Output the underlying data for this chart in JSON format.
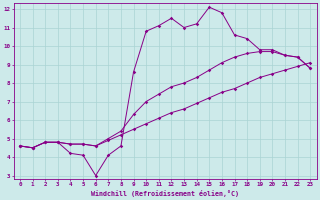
{
  "xlabel": "Windchill (Refroidissement éolien,°C)",
  "bg_color": "#cdeaea",
  "grid_color": "#aad4d4",
  "line_color": "#880088",
  "spine_color": "#880088",
  "xlim": [
    -0.5,
    23.5
  ],
  "ylim": [
    2.8,
    12.3
  ],
  "xticks": [
    0,
    1,
    2,
    3,
    4,
    5,
    6,
    7,
    8,
    9,
    10,
    11,
    12,
    13,
    14,
    15,
    16,
    17,
    18,
    19,
    20,
    21,
    22,
    23
  ],
  "yticks": [
    3,
    4,
    5,
    6,
    7,
    8,
    9,
    10,
    11,
    12
  ],
  "line1_x": [
    0,
    1,
    2,
    3,
    4,
    5,
    6,
    7,
    8,
    9,
    10,
    11,
    12,
    13,
    14,
    15,
    16,
    17,
    18,
    19,
    20,
    21,
    22,
    23
  ],
  "line1_y": [
    4.6,
    4.5,
    4.8,
    4.8,
    4.7,
    4.7,
    4.6,
    4.9,
    5.2,
    5.5,
    5.8,
    6.1,
    6.4,
    6.6,
    6.9,
    7.2,
    7.5,
    7.7,
    8.0,
    8.3,
    8.5,
    8.7,
    8.9,
    9.1
  ],
  "line2_x": [
    0,
    1,
    2,
    3,
    4,
    5,
    6,
    7,
    8,
    9,
    10,
    11,
    12,
    13,
    14,
    15,
    16,
    17,
    18,
    19,
    20,
    21,
    22,
    23
  ],
  "line2_y": [
    4.6,
    4.5,
    4.8,
    4.8,
    4.2,
    4.1,
    3.0,
    4.1,
    4.6,
    8.6,
    10.8,
    11.1,
    11.5,
    11.0,
    11.2,
    12.1,
    11.8,
    10.6,
    10.4,
    9.8,
    9.8,
    9.5,
    9.4,
    8.8
  ],
  "line3_x": [
    0,
    1,
    2,
    3,
    4,
    5,
    6,
    7,
    8,
    9,
    10,
    11,
    12,
    13,
    14,
    15,
    16,
    17,
    18,
    19,
    20,
    21,
    22,
    23
  ],
  "line3_y": [
    4.6,
    4.5,
    4.8,
    4.8,
    4.7,
    4.7,
    4.6,
    5.0,
    5.4,
    6.3,
    7.0,
    7.4,
    7.8,
    8.0,
    8.3,
    8.7,
    9.1,
    9.4,
    9.6,
    9.7,
    9.7,
    9.5,
    9.4,
    8.8
  ]
}
